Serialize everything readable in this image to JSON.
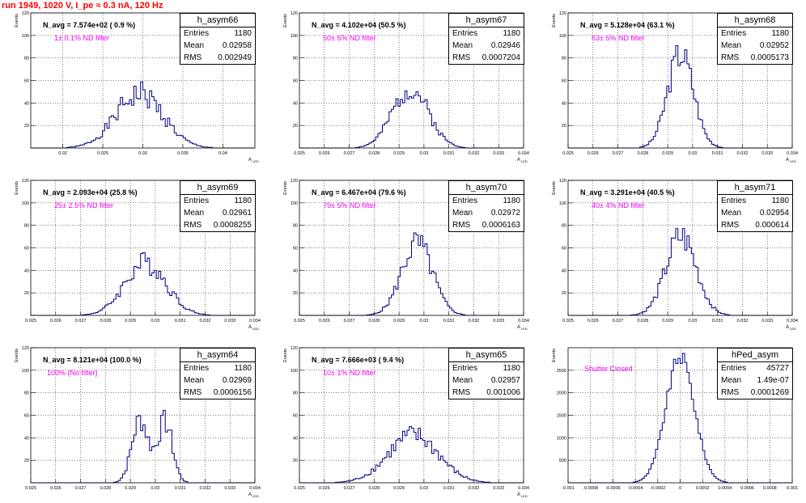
{
  "header": "run 1949,  1020 V, I_pe ≈ 0.3 nA, 120 Hz",
  "colors": {
    "line": "#000080",
    "avg_text": "#000000",
    "filter_text": "#ee00ee",
    "header": "#ff0000"
  },
  "stat_labels": {
    "entries": "Entries",
    "mean": "Mean",
    "rms": "RMS"
  },
  "panels": [
    {
      "name": "h_asym66",
      "n_avg": "N_avg = 7.574e+02 ( 0.9 %)",
      "filter": "1± 0.1% ND filter",
      "entries": "1180",
      "mean": "0.02958",
      "rms": "0.002949",
      "ylabel": "Events",
      "xlabel": "A",
      "xlabel_sub": "LED",
      "x_ticks": [
        "0.02",
        "0.025",
        "0.03",
        "0.035",
        "0.04"
      ],
      "y_ticks": [
        "20",
        "40",
        "60",
        "80",
        "100",
        "120"
      ],
      "chart_data": {
        "type": "histogram",
        "xlim": [
          0.016,
          0.044
        ],
        "ylim": [
          0,
          120
        ],
        "peak": {
          "mu": 0.02958,
          "sigma": 0.00295,
          "height": 48
        },
        "jaggedness": 0.25,
        "seed": 1
      }
    },
    {
      "name": "h_asym67",
      "n_avg": "N_avg = 4.102e+04 (50.5 %)",
      "filter": "50± 5% ND filter",
      "entries": "1180",
      "mean": "0.02946",
      "rms": "0.0007204",
      "ylabel": "Events",
      "xlabel": "A",
      "xlabel_sub": "LED",
      "x_ticks": [
        "0.025",
        "0.026",
        "0.027",
        "0.028",
        "0.029",
        "0.03",
        "0.031",
        "0.032",
        "0.033",
        "0.034"
      ],
      "y_ticks": [
        "20",
        "40",
        "60",
        "80",
        "100",
        "120"
      ],
      "chart_data": {
        "type": "histogram",
        "xlim": [
          0.025,
          0.034
        ],
        "ylim": [
          0,
          120
        ],
        "peak": {
          "mu": 0.02946,
          "sigma": 0.00072,
          "height": 53
        },
        "jaggedness": 0.2,
        "seed": 2
      }
    },
    {
      "name": "h_asym68",
      "n_avg": "N_avg = 5.128e+04 (63.1 %)",
      "filter": "63± 5% ND filter",
      "entries": "1180",
      "mean": "0.02952",
      "rms": "0.0005173",
      "ylabel": "Events",
      "xlabel": "A",
      "xlabel_sub": "LED",
      "x_ticks": [
        "0.025",
        "0.026",
        "0.027",
        "0.028",
        "0.029",
        "0.03",
        "0.031",
        "0.032",
        "0.033",
        "0.034"
      ],
      "y_ticks": [
        "20",
        "40",
        "60",
        "80",
        "100",
        "120"
      ],
      "chart_data": {
        "type": "histogram",
        "xlim": [
          0.025,
          0.034
        ],
        "ylim": [
          0,
          120
        ],
        "peak": {
          "mu": 0.02952,
          "sigma": 0.00052,
          "height": 84
        },
        "jaggedness": 0.18,
        "seed": 3
      }
    },
    {
      "name": "h_asym69",
      "n_avg": "N_avg = 2.093e+04 (25.8 %)",
      "filter": "25± 2.5% ND filter",
      "entries": "1180",
      "mean": "0.02961",
      "rms": "0.0008255",
      "ylabel": "Events",
      "xlabel": "A",
      "xlabel_sub": "LED",
      "x_ticks": [
        "0.025",
        "0.026",
        "0.027",
        "0.028",
        "0.029",
        "0.03",
        "0.031",
        "0.032",
        "0.033",
        "0.034"
      ],
      "y_ticks": [
        "20",
        "40",
        "60",
        "80",
        "100",
        "120"
      ],
      "chart_data": {
        "type": "histogram",
        "xlim": [
          0.025,
          0.034
        ],
        "ylim": [
          0,
          120
        ],
        "peak": {
          "mu": 0.02961,
          "sigma": 0.00083,
          "height": 47
        },
        "jaggedness": 0.22,
        "seed": 4
      }
    },
    {
      "name": "h_asym70",
      "n_avg": "N_avg = 6.467e+04 (79.6 %)",
      "filter": "79± 5% ND filter",
      "entries": "1180",
      "mean": "0.02972",
      "rms": "0.0006163",
      "ylabel": "Events",
      "xlabel": "A",
      "xlabel_sub": "LED",
      "x_ticks": [
        "0.025",
        "0.026",
        "0.027",
        "0.028",
        "0.029",
        "0.03",
        "0.031",
        "0.032",
        "0.033",
        "0.034"
      ],
      "y_ticks": [
        "20",
        "40",
        "60",
        "80",
        "100",
        "120"
      ],
      "chart_data": {
        "type": "histogram",
        "xlim": [
          0.025,
          0.034
        ],
        "ylim": [
          0,
          120
        ],
        "peak": {
          "mu": 0.02972,
          "sigma": 0.00062,
          "height": 64
        },
        "jaggedness": 0.2,
        "seed": 5
      }
    },
    {
      "name": "h_asym71",
      "n_avg": "N_avg = 3.291e+04 (40.5 %)",
      "filter": "40± 4% ND filter",
      "entries": "1180",
      "mean": "0.02954",
      "rms": "0.000614",
      "ylabel": "Events",
      "xlabel": "A",
      "xlabel_sub": "LED",
      "x_ticks": [
        "0.025",
        "0.026",
        "0.027",
        "0.028",
        "0.029",
        "0.03",
        "0.031",
        "0.032",
        "0.033",
        "0.034"
      ],
      "y_ticks": [
        "20",
        "40",
        "60",
        "80",
        "100",
        "120"
      ],
      "chart_data": {
        "type": "histogram",
        "xlim": [
          0.025,
          0.034
        ],
        "ylim": [
          0,
          120
        ],
        "peak": {
          "mu": 0.02954,
          "sigma": 0.00061,
          "height": 70
        },
        "jaggedness": 0.2,
        "seed": 6
      }
    },
    {
      "name": "h_asym64",
      "n_avg": "N_avg = 8.121e+04 (100.0 %)",
      "filter": "100% (No filter)",
      "entries": "1180",
      "mean": "0.02969",
      "rms": "0.0006156",
      "ylabel": "Events",
      "xlabel": "A",
      "xlabel_sub": "LED",
      "x_ticks": [
        "0.025",
        "0.026",
        "0.027",
        "0.028",
        "0.029",
        "0.03",
        "0.031",
        "0.032",
        "0.033",
        "0.034"
      ],
      "y_ticks": [
        "20",
        "40",
        "60",
        "80",
        "100",
        "120"
      ],
      "chart_data": {
        "type": "histogram",
        "xlim": [
          0.025,
          0.034
        ],
        "ylim": [
          0,
          120
        ],
        "peak": {
          "mu": 0.02969,
          "sigma": 0.0006,
          "height": 64,
          "double": true
        },
        "jaggedness": 0.2,
        "seed": 7
      }
    },
    {
      "name": "h_asym65",
      "n_avg": "N_avg = 7.666e+03 ( 9.4 %)",
      "filter": "10± 1% ND filter",
      "entries": "1180",
      "mean": "0.02957",
      "rms": "0.001006",
      "ylabel": "Events",
      "xlabel": "A",
      "xlabel_sub": "LED",
      "x_ticks": [
        "0.025",
        "0.026",
        "0.027",
        "0.028",
        "0.029",
        "0.03",
        "0.031",
        "0.032",
        "0.033",
        "0.034"
      ],
      "y_ticks": [
        "20",
        "40",
        "60",
        "80",
        "100",
        "120"
      ],
      "chart_data": {
        "type": "histogram",
        "xlim": [
          0.025,
          0.034
        ],
        "ylim": [
          0,
          120
        ],
        "peak": {
          "mu": 0.02957,
          "sigma": 0.00101,
          "height": 42
        },
        "jaggedness": 0.22,
        "seed": 8
      }
    },
    {
      "name": "hPed_asym",
      "n_avg": "",
      "filter": "Shutter Closed",
      "entries": "45727",
      "mean": "1.49e-07",
      "rms": "0.0001269",
      "ylabel": "Events",
      "xlabel": "",
      "xlabel_sub": "",
      "x_ticks": [
        "-0.001",
        "-0.0008",
        "-0.0006",
        "-0.0004",
        "-0.0002",
        "0",
        "0.0002",
        "0.0004",
        "0.0006",
        "0.0008",
        "0.001"
      ],
      "y_ticks": [
        "500",
        "1000",
        "1500",
        "2000",
        "2500"
      ],
      "chart_data": {
        "type": "histogram",
        "xlim": [
          -0.001,
          0.001
        ],
        "ylim": [
          0,
          3000
        ],
        "peak": {
          "mu": 1e-07,
          "sigma": 0.000127,
          "height": 2800
        },
        "jaggedness": 0.06,
        "seed": 9
      }
    }
  ]
}
